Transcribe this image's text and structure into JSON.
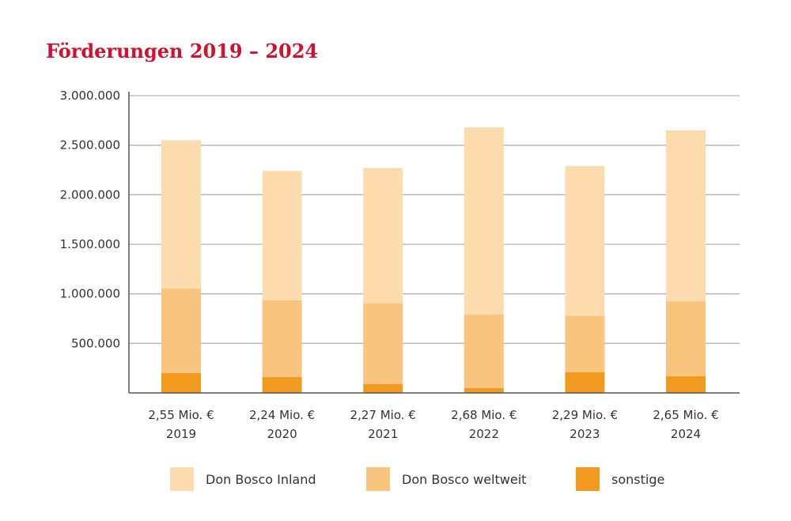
{
  "chart_data": {
    "type": "bar",
    "stacked": true,
    "title": "Förderungen 2019 – 2024",
    "categories": [
      "2019",
      "2020",
      "2021",
      "2022",
      "2023",
      "2024"
    ],
    "category_totals": [
      "2,55 Mio. €",
      "2,24 Mio. €",
      "2,27 Mio. €",
      "2,68 Mio. €",
      "2,29 Mio. €",
      "2,65 Mio. €"
    ],
    "series": [
      {
        "name": "sonstige",
        "color": "#f29a1f",
        "values": [
          200000,
          160000,
          90000,
          50000,
          210000,
          170000
        ]
      },
      {
        "name": "Don Bosco weltweit",
        "color": "#f8c47e",
        "values": [
          855000,
          775000,
          815000,
          740000,
          570000,
          755000
        ]
      },
      {
        "name": "Don Bosco Inland",
        "color": "#fcdcac",
        "values": [
          1495000,
          1305000,
          1365000,
          1890000,
          1510000,
          1725000
        ]
      }
    ],
    "ylim": [
      0,
      3000000
    ],
    "yticks": [
      500000,
      1000000,
      1500000,
      2000000,
      2500000,
      3000000
    ],
    "ytick_labels": [
      "500.000",
      "1.000.000",
      "1.500.000",
      "2.000.000",
      "2.500.000",
      "3.000.000"
    ],
    "grid": true,
    "legend_position": "bottom",
    "legend": [
      "Don Bosco Inland",
      "Don Bosco weltweit",
      "sonstige"
    ]
  }
}
